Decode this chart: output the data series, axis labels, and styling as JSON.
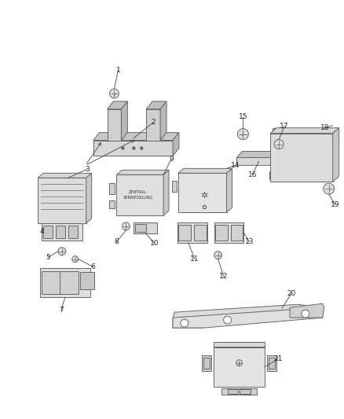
{
  "bg": "#ffffff",
  "lc": "#666666",
  "fc_light": "#e8e8e8",
  "fc_mid": "#d0d0d0",
  "fc_dark": "#b8b8b8",
  "lw": 0.7,
  "fig_w": 4.38,
  "fig_h": 5.33,
  "dpi": 100
}
